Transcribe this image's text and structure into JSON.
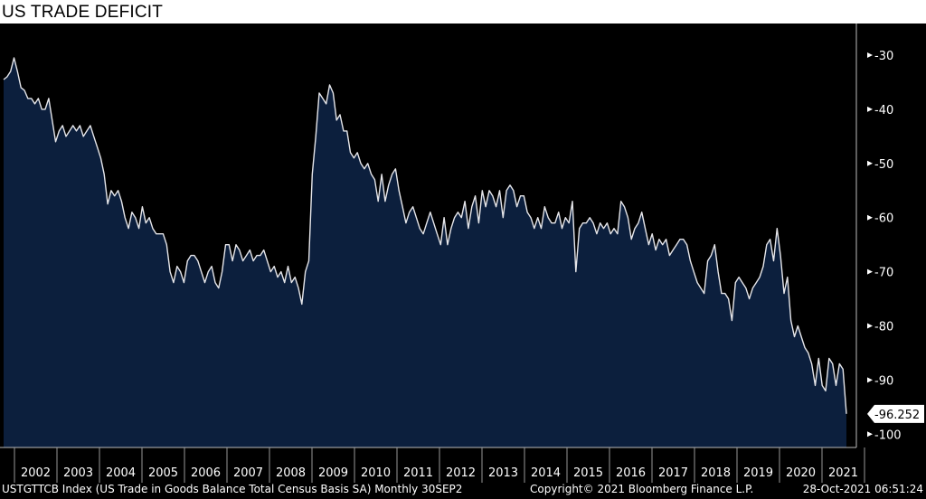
{
  "title": "US TRADE DEFICIT",
  "footer": {
    "ticker": "USTGTTCB Index (US Trade in Goods Balance Total Census Basis SA)  Monthly 30SEP2",
    "copyright": "Copyright© 2021 Bloomberg Finance L.P.",
    "timestamp": "28-Oct-2021 06:51:24"
  },
  "colors": {
    "fill": "#0c1f3d",
    "line": "#e6e6ea",
    "background": "#000000"
  },
  "chart_data": {
    "type": "area",
    "title": "US TRADE DEFICIT",
    "xlabel": "",
    "ylabel": "",
    "ylim": [
      -104,
      -25
    ],
    "yticks": [
      -30,
      -40,
      -50,
      -60,
      -70,
      -80,
      -90,
      -100
    ],
    "ytick_labels": [
      "-30",
      "-40",
      "-50",
      "-60",
      "-70",
      "-80",
      "-90",
      "-100"
    ],
    "x_start": "2001-10",
    "frequency": "monthly",
    "xtick_labels": [
      "2002",
      "2003",
      "2004",
      "2005",
      "2006",
      "2007",
      "2008",
      "2009",
      "2010",
      "2011",
      "2012",
      "2013",
      "2014",
      "2015",
      "2016",
      "2017",
      "2018",
      "2019",
      "2020",
      "2021"
    ],
    "last_value_label": "-96.252",
    "series": [
      {
        "name": "USTGTTCB Index",
        "values": [
          -34.5,
          -34,
          -33,
          -30.5,
          -33,
          -36,
          -36.5,
          -38,
          -38,
          -39,
          -38,
          -40,
          -40,
          -38,
          -42,
          -46,
          -44,
          -43,
          -45,
          -44,
          -43,
          -44,
          -43,
          -45,
          -44,
          -43,
          -45,
          -47,
          -49,
          -52,
          -57.5,
          -55,
          -56,
          -55,
          -57,
          -60,
          -62,
          -59,
          -60,
          -62,
          -58,
          -61,
          -60,
          -62,
          -63,
          -63,
          -63,
          -65,
          -70,
          -72,
          -69,
          -70,
          -72,
          -68,
          -67,
          -67,
          -68,
          -70,
          -72,
          -70,
          -69,
          -72,
          -73,
          -70,
          -65,
          -65,
          -68,
          -65,
          -66,
          -68,
          -67,
          -66,
          -68,
          -67,
          -67,
          -66,
          -68,
          -70,
          -69,
          -71,
          -70,
          -72,
          -69,
          -72,
          -71,
          -73,
          -76,
          -70,
          -68,
          -52,
          -45,
          -37,
          -38,
          -39,
          -35.5,
          -37,
          -42,
          -41,
          -44,
          -44,
          -48,
          -49,
          -48,
          -50,
          -51,
          -50,
          -52,
          -53,
          -57,
          -52,
          -57,
          -54,
          -52,
          -51,
          -55,
          -58,
          -61,
          -59,
          -58,
          -60,
          -62,
          -63,
          -61,
          -59,
          -61,
          -63,
          -65,
          -60,
          -65,
          -62,
          -60,
          -59,
          -60,
          -57,
          -62,
          -58,
          -56,
          -61,
          -55,
          -58,
          -55,
          -56,
          -58,
          -55,
          -60,
          -55,
          -54,
          -55,
          -58,
          -56,
          -56,
          -59,
          -60,
          -62,
          -60,
          -62,
          -58,
          -60,
          -61,
          -61,
          -59,
          -62,
          -60,
          -61,
          -57,
          -70,
          -62,
          -61,
          -61,
          -60,
          -61,
          -63,
          -61,
          -62,
          -61,
          -63,
          -62,
          -63,
          -57,
          -58,
          -60,
          -64,
          -62,
          -61,
          -59,
          -62,
          -65,
          -63,
          -66,
          -64,
          -65,
          -64,
          -67,
          -66,
          -65,
          -64,
          -64,
          -65,
          -68,
          -70,
          -72,
          -73,
          -74,
          -68,
          -67,
          -65,
          -70,
          -74,
          -74,
          -75,
          -79,
          -72,
          -71,
          -72,
          -73,
          -75,
          -73,
          -72,
          -71,
          -69,
          -65,
          -64,
          -68,
          -62,
          -67,
          -74,
          -71,
          -79,
          -82,
          -80,
          -82,
          -84,
          -85,
          -87,
          -91,
          -86,
          -91,
          -92,
          -86,
          -87,
          -91,
          -87,
          -88,
          -96.252
        ]
      }
    ],
    "grid": false,
    "legend": "none"
  }
}
